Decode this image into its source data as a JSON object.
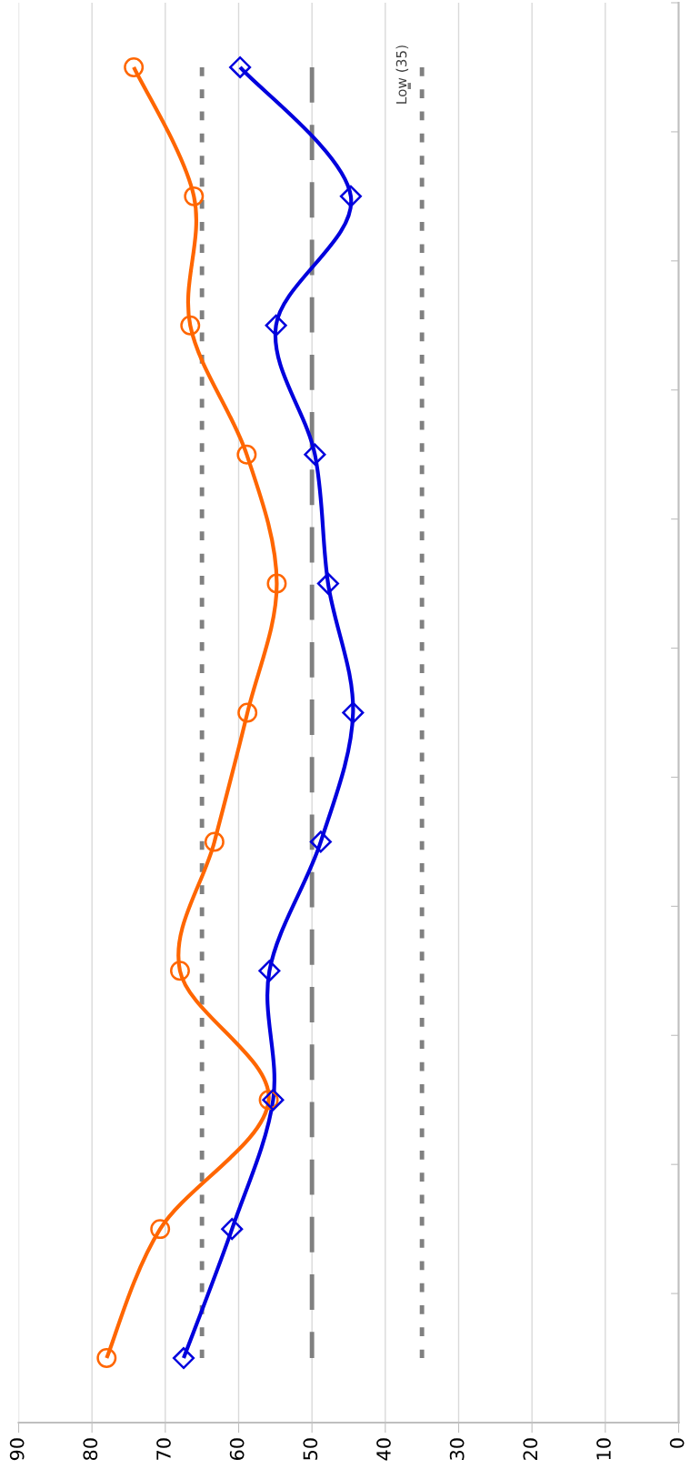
{
  "chart_data": {
    "type": "line",
    "orientation": "horizontal",
    "categories": [
      null,
      null,
      null,
      null,
      null,
      null,
      null,
      null,
      null,
      null,
      null
    ],
    "series": [
      {
        "color": "#ff6600",
        "marker": "circle",
        "values": [
          74.3,
          66.1,
          66.6,
          58.9,
          54.8,
          58.8,
          63.3,
          68.0,
          55.9,
          70.7,
          78.0
        ]
      },
      {
        "color": "#0000dd",
        "marker": "diamond",
        "values": [
          59.8,
          44.7,
          54.9,
          49.6,
          47.8,
          44.4,
          48.8,
          55.8,
          55.3,
          60.9,
          67.5
        ]
      }
    ],
    "xlim": [
      90,
      0
    ],
    "xticks": [
      0,
      10,
      20,
      30,
      40,
      50,
      60,
      70,
      80,
      90
    ],
    "ref_lines": [
      {
        "axis": "x",
        "value": 65,
        "color": "#808080",
        "line_style": "dotted"
      },
      {
        "axis": "x",
        "value": 50,
        "color": "#808080",
        "line_style": "dashed"
      },
      {
        "axis": "x",
        "value": 35,
        "color": "#808080",
        "line_style": "dotted",
        "label": "Low (35)"
      }
    ],
    "grid": "x",
    "tick_labels": "x",
    "line_style": "solid"
  }
}
